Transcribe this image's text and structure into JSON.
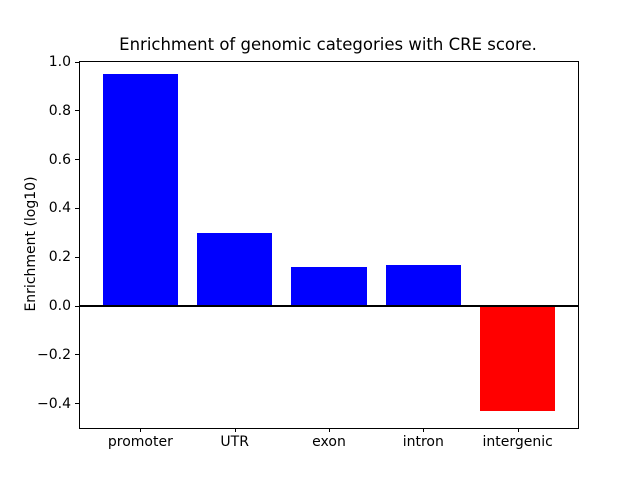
{
  "chart_data": {
    "type": "bar",
    "title": "Enrichment of genomic categories with CRE score.",
    "xlabel": "",
    "ylabel": "Enrichment (log10)",
    "categories": [
      "promoter",
      "UTR",
      "exon",
      "intron",
      "intergenic"
    ],
    "values": [
      0.95,
      0.3,
      0.16,
      0.17,
      -0.43
    ],
    "bar_colors": [
      "#0000ff",
      "#0000ff",
      "#0000ff",
      "#0000ff",
      "#ff0000"
    ],
    "positive_color": "#0000ff",
    "negative_color": "#ff0000",
    "ylim": [
      -0.5,
      1.0
    ],
    "yticks": [
      1.0,
      0.8,
      0.6,
      0.4,
      0.2,
      0.0,
      -0.2,
      -0.4
    ],
    "bar_width_fraction": 0.8,
    "grid": false,
    "legend_position": "none",
    "zero_line": true,
    "zero_line_color": "#000000",
    "background_color": "#ffffff",
    "spine_color": "#000000"
  }
}
